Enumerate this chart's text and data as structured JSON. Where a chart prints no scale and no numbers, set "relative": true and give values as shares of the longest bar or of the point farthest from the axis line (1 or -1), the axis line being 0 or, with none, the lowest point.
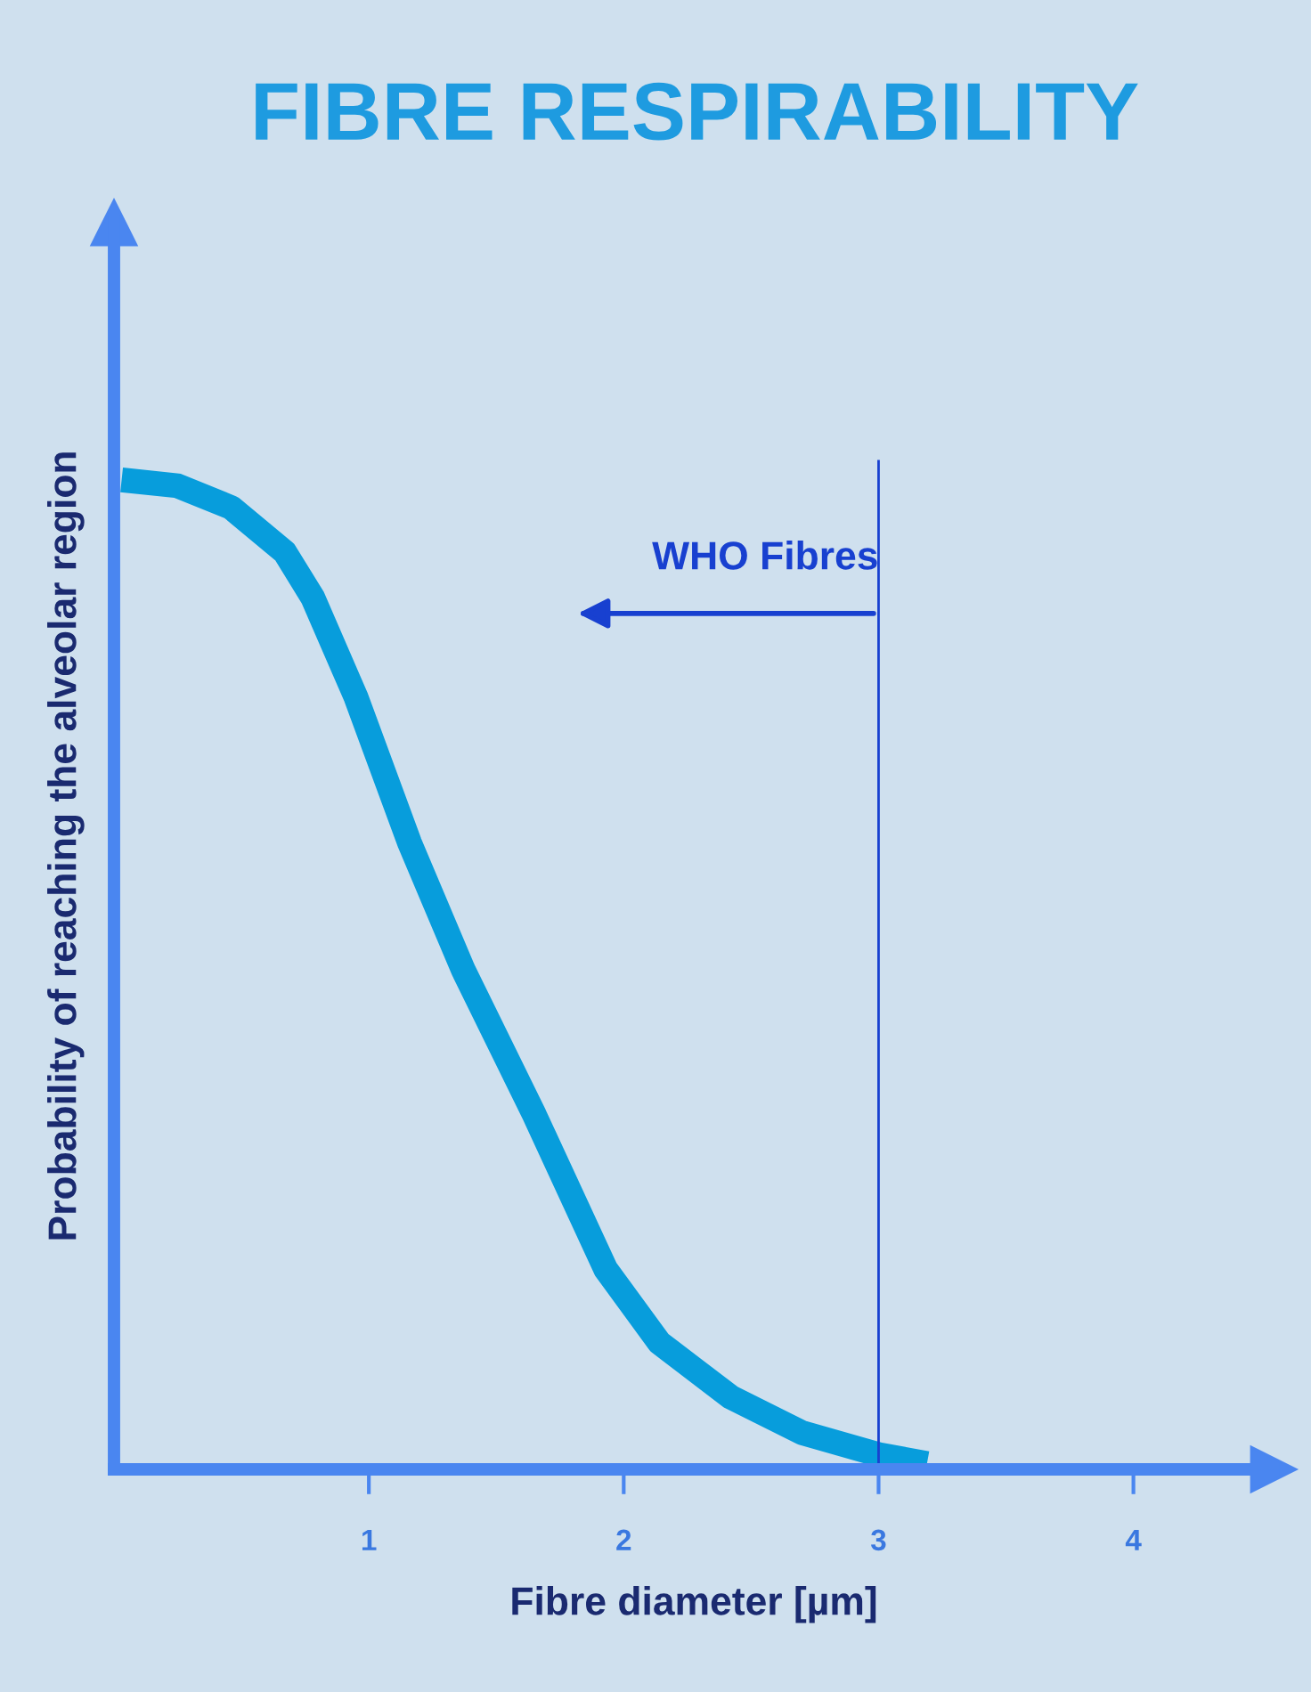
{
  "chart_data": {
    "type": "line",
    "title": "FIBRE RESPIRABILITY",
    "xlabel": "Fibre diameter [µm]",
    "ylabel": "Probability of reaching the alveolar region",
    "relative": true,
    "xlim": [
      0,
      4.55
    ],
    "xticks": [
      1,
      2,
      3,
      4
    ],
    "grid": false,
    "legend": false,
    "marker": "none",
    "line_style": "solid",
    "x": [
      0.03,
      0.25,
      0.46,
      0.67,
      0.78,
      0.95,
      1.16,
      1.37,
      1.65,
      1.93,
      2.14,
      2.42,
      2.7,
      3.0,
      3.19
    ],
    "series": [
      {
        "color": "#079ddc",
        "values": [
          1.0,
          0.994,
          0.972,
          0.927,
          0.881,
          0.78,
          0.633,
          0.505,
          0.358,
          0.202,
          0.128,
          0.073,
          0.037,
          0.015,
          0.006
        ]
      }
    ],
    "ref_lines": [
      {
        "axis": "x",
        "value": 3,
        "label": "WHO Fibres",
        "color": "#1840d0"
      }
    ]
  }
}
